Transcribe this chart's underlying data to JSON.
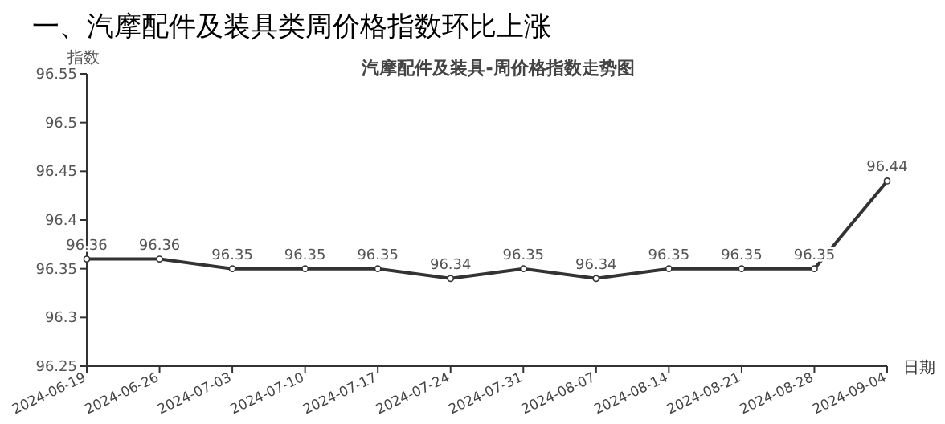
{
  "chart_data": {
    "type": "line",
    "title": "一、汽摩配件及装具类周价格指数环比上涨",
    "subtitle": "汽摩配件及装具-周价格指数走势图",
    "xlabel": "日期",
    "ylabel": "指数",
    "categories": [
      "2024-06-19",
      "2024-06-26",
      "2024-07-03",
      "2024-07-10",
      "2024-07-17",
      "2024-07-24",
      "2024-07-31",
      "2024-08-07",
      "2024-08-14",
      "2024-08-21",
      "2024-08-28",
      "2024-09-04"
    ],
    "series": [
      {
        "color": "#333333",
        "values": [
          96.36,
          96.36,
          96.35,
          96.35,
          96.35,
          96.34,
          96.35,
          96.34,
          96.35,
          96.35,
          96.35,
          96.44
        ]
      }
    ],
    "ylim": [
      96.25,
      96.55
    ],
    "yticks": [
      96.25,
      96.3,
      96.35,
      96.4,
      96.45,
      96.5,
      96.55
    ],
    "data_labels": true,
    "marker": "circle",
    "line_style": "solid"
  }
}
